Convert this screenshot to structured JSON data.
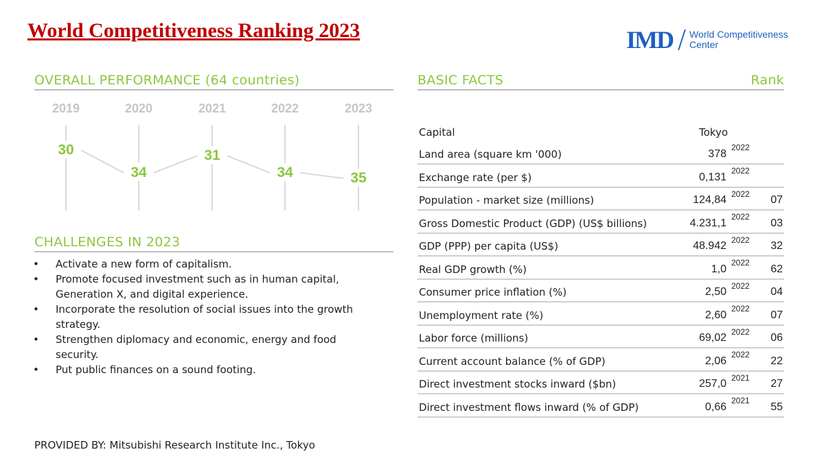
{
  "title": "World Competitiveness Ranking 2023",
  "logo": {
    "mark": "IMD",
    "line1": "World Competitiveness",
    "line2": "Center"
  },
  "overall_performance": {
    "heading": "OVERALL PERFORMANCE  (64 countries)"
  },
  "chart_data": {
    "type": "line",
    "categories": [
      "2019",
      "2020",
      "2021",
      "2022",
      "2023"
    ],
    "values": [
      30,
      34,
      31,
      34,
      35
    ],
    "title": "",
    "xlabel": "",
    "ylabel": "",
    "ylim": [
      30,
      35
    ],
    "y_inverted": true,
    "grid": false,
    "colors": {
      "year_label": "#c6c6c6",
      "rank_label": "#8cc63e",
      "line": "#d9d9d9"
    }
  },
  "challenges": {
    "heading": "CHALLENGES IN 2023",
    "items": [
      {
        "bullet": "•",
        "lines": [
          "Activate a new form of capitalism."
        ]
      },
      {
        "bullet": "•",
        "lines": [
          "Promote focused investment such as in human capital,",
          "Generation X, and digital experience."
        ]
      },
      {
        "bullet": "•",
        "lines": [
          "Incorporate the resolution of social issues into the growth",
          "strategy."
        ]
      },
      {
        "bullet": "•",
        "lines": [
          "Strengthen diplomacy and economic, energy and food",
          "security."
        ]
      },
      {
        "bullet": "•",
        "lines": [
          "Put public finances on a sound footing."
        ]
      }
    ]
  },
  "basic_facts": {
    "heading": "BASIC FACTS",
    "rank_heading": "Rank",
    "capital": {
      "label": "Capital",
      "value": "Tokyo"
    },
    "rows": [
      {
        "label": "Land area (square km '000)",
        "value": "378",
        "year": "2022",
        "rank": ""
      },
      {
        "label": "Exchange rate (per $)",
        "value": "0,131",
        "year": "2022",
        "rank": ""
      },
      {
        "label": "Population - market size (millions)",
        "value": "124,84",
        "year": "2022",
        "rank": "07"
      },
      {
        "label": "Gross Domestic Product (GDP) (US$ billions)",
        "value": "4.231,1",
        "year": "2022",
        "rank": "03"
      },
      {
        "label": "GDP (PPP) per capita (US$)",
        "value": "48.942",
        "year": "2022",
        "rank": "32"
      },
      {
        "label": "Real GDP growth (%)",
        "value": "1,0",
        "year": "2022",
        "rank": "62"
      },
      {
        "label": "Consumer price inflation (%)",
        "value": "2,50",
        "year": "2022",
        "rank": "04"
      },
      {
        "label": "Unemployment rate (%)",
        "value": "2,60",
        "year": "2022",
        "rank": "07"
      },
      {
        "label": "Labor force (millions)",
        "value": "69,02",
        "year": "2022",
        "rank": "06"
      },
      {
        "label": "Current account balance (% of GDP)",
        "value": "2,06",
        "year": "2022",
        "rank": "22"
      },
      {
        "label": "Direct investment stocks inward ($bn)",
        "value": "257,0",
        "year": "2021",
        "rank": "27"
      },
      {
        "label": "Direct investment flows inward (% of GDP)",
        "value": "0,66",
        "year": "2021",
        "rank": "55"
      }
    ]
  },
  "footer": "PROVIDED BY: Mitsubishi Research Institute Inc., Tokyo",
  "colors": {
    "title": "#c00000",
    "accent_green": "#8cc63e",
    "logo_blue": "#1f5fc0",
    "rule_gray": "#bdbdbd"
  }
}
